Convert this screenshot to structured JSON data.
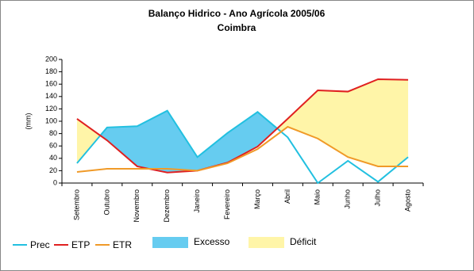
{
  "chart_data": {
    "type": "line",
    "title": "Balanço Hidrico - Ano Agrícola 2005/06",
    "subtitle": "Coimbra",
    "y_label": "(mm)",
    "categories": [
      "Setembro",
      "Outubro",
      "Novembro",
      "Dezembro",
      "Janeiro",
      "Fevereiro",
      "Março",
      "Abril",
      "Maio",
      "Junho",
      "Julho",
      "Agosto"
    ],
    "series": [
      {
        "name": "Prec",
        "color": "#22c0e0",
        "values": [
          32,
          90,
          92,
          117,
          42,
          81,
          115,
          74,
          0,
          36,
          2,
          42
        ]
      },
      {
        "name": "ETP",
        "color": "#e02020",
        "values": [
          104,
          69,
          27,
          17,
          20,
          33,
          59,
          104,
          150,
          148,
          168,
          167
        ]
      },
      {
        "name": "ETR",
        "color": "#f09a28",
        "values": [
          18,
          23,
          23,
          23,
          20,
          32,
          55,
          91,
          72,
          42,
          27,
          27
        ]
      }
    ],
    "areas": [
      {
        "name": "Excesso",
        "color": "#66ccf0"
      },
      {
        "name": "Déficit",
        "color": "#fff5a8"
      }
    ],
    "ylim": [
      0,
      200
    ],
    "yticks": [
      0,
      20,
      40,
      60,
      80,
      100,
      120,
      140,
      160,
      180,
      200
    ]
  }
}
